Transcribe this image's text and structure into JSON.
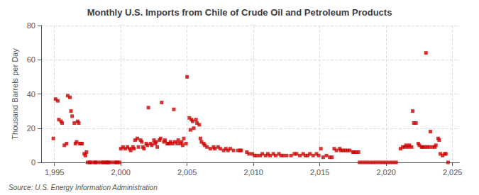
{
  "chart_data": {
    "type": "scatter",
    "title": "Monthly U.S. Imports from Chile of Crude Oil and Petroleum Products",
    "ylabel": "Thousand Barrels per Day",
    "annotations": [
      "Source: U.S. Energy Information Administration"
    ],
    "color": "#cc0000",
    "marker": "square",
    "grid": true,
    "xlim": [
      1994.0,
      2025.5
    ],
    "xticks": [
      1995,
      2000,
      2005,
      2010,
      2015,
      2020,
      2025
    ],
    "ylim": [
      0,
      80
    ],
    "yticks": [
      0,
      20,
      40,
      60,
      80
    ],
    "x": [
      1994.917,
      1995.083,
      1995.25,
      1995.333,
      1995.5,
      1995.583,
      1995.75,
      1995.917,
      1996.0,
      1996.167,
      1996.25,
      1996.333,
      1996.5,
      1996.583,
      1996.667,
      1996.75,
      1996.833,
      1996.917,
      1997.0,
      1997.083,
      1997.25,
      1997.333,
      1997.417,
      1997.5,
      1997.667,
      1997.75,
      1998.0,
      1998.083,
      1998.25,
      1998.5,
      1998.667,
      1998.75,
      1998.917,
      1999.0,
      1999.083,
      1999.25,
      1999.5,
      1999.667,
      1999.75,
      1999.917,
      2000.0,
      2000.167,
      2000.333,
      2000.5,
      2000.667,
      2000.75,
      2000.917,
      2001.0,
      2001.083,
      2001.25,
      2001.333,
      2001.5,
      2001.583,
      2001.667,
      2001.75,
      2001.917,
      2002.0,
      2002.083,
      2002.25,
      2002.333,
      2002.5,
      2002.583,
      2002.667,
      2002.75,
      2002.917,
      2003.0,
      2003.083,
      2003.25,
      2003.333,
      2003.5,
      2003.583,
      2003.667,
      2003.75,
      2003.917,
      2004.0,
      2004.083,
      2004.25,
      2004.333,
      2004.5,
      2004.583,
      2004.667,
      2004.75,
      2004.917,
      2005.0,
      2005.167,
      2005.25,
      2005.333,
      2005.417,
      2005.5,
      2005.667,
      2005.75,
      2005.917,
      2006.0,
      2006.083,
      2006.25,
      2006.333,
      2006.5,
      2006.75,
      2007.0,
      2007.083,
      2007.333,
      2007.5,
      2007.75,
      2007.917,
      2008.083,
      2008.25,
      2008.5,
      2008.833,
      2009.0,
      2009.083,
      2009.5,
      2009.667,
      2009.917,
      2010.083,
      2010.25,
      2010.5,
      2010.667,
      2010.917,
      2011.083,
      2011.25,
      2011.5,
      2011.667,
      2011.917,
      2012.083,
      2012.25,
      2012.5,
      2012.833,
      2013.083,
      2013.25,
      2013.5,
      2013.75,
      2013.917,
      2014.083,
      2014.25,
      2014.5,
      2014.75,
      2014.917,
      2015.083,
      2015.25,
      2015.5,
      2015.75,
      2015.917,
      2016.083,
      2016.25,
      2016.5,
      2016.583,
      2016.75,
      2016.917,
      2017.083,
      2017.25,
      2017.5,
      2017.583,
      2017.75,
      2017.917,
      2018.0,
      2018.25,
      2018.5,
      2018.75,
      2019.0,
      2019.25,
      2019.5,
      2019.75,
      2020.0,
      2020.25,
      2020.5,
      2020.75,
      2021.083,
      2021.25,
      2021.417,
      2021.5,
      2021.667,
      2021.75,
      2021.917,
      2022.0,
      2022.083,
      2022.25,
      2022.417,
      2022.5,
      2022.667,
      2022.75,
      2022.917,
      2023.0,
      2023.083,
      2023.25,
      2023.333,
      2023.5,
      2023.667,
      2023.75,
      2023.917,
      2024.0,
      2024.083,
      2024.25,
      2024.417,
      2024.5,
      2024.667
    ],
    "values": [
      14,
      37,
      36,
      25,
      24,
      23,
      10,
      11,
      39,
      38,
      30,
      27,
      23,
      11,
      12,
      24,
      23,
      11,
      11,
      11,
      5,
      4,
      6,
      0,
      0,
      0,
      0,
      0,
      0,
      0,
      0,
      0,
      0,
      0,
      0,
      0,
      0,
      0,
      0,
      0,
      8,
      9,
      8,
      9,
      8,
      7,
      9,
      8,
      13,
      14,
      9,
      13,
      12,
      9,
      8,
      11,
      10,
      32,
      11,
      10,
      13,
      11,
      12,
      9,
      13,
      14,
      35,
      12,
      13,
      11,
      11,
      11,
      12,
      11,
      31,
      12,
      11,
      13,
      11,
      12,
      10,
      14,
      11,
      50,
      26,
      19,
      25,
      24,
      20,
      25,
      23,
      22,
      14,
      12,
      11,
      10,
      9,
      8,
      9,
      8,
      9,
      8,
      7,
      8,
      7,
      8,
      7,
      7,
      7,
      7,
      6,
      5,
      5,
      4,
      4,
      4,
      5,
      4,
      5,
      4,
      5,
      4,
      5,
      4,
      4,
      4,
      4,
      5,
      5,
      4,
      5,
      4,
      4,
      5,
      4,
      5,
      4,
      8,
      3,
      4,
      3,
      3,
      8,
      7,
      8,
      7,
      7,
      7,
      7,
      7,
      6,
      6,
      6,
      6,
      0,
      0,
      0,
      0,
      0,
      0,
      0,
      0,
      0,
      0,
      0,
      0,
      8,
      9,
      9,
      10,
      9,
      10,
      9,
      30,
      23,
      23,
      11,
      10,
      9,
      9,
      9,
      64,
      9,
      9,
      18,
      9,
      9,
      10,
      14,
      13,
      5,
      4,
      5,
      5,
      0
    ]
  }
}
